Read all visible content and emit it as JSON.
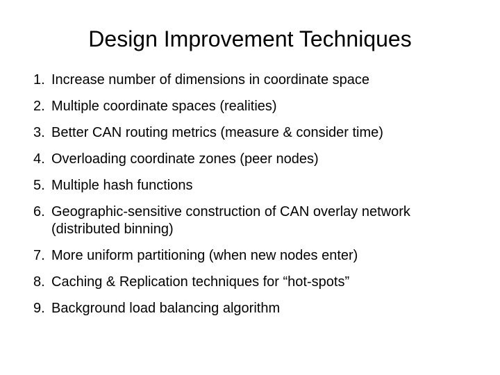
{
  "title": "Design Improvement Techniques",
  "items": [
    {
      "num": "1.",
      "text": "Increase number of dimensions in coordinate space"
    },
    {
      "num": "2.",
      "text": "Multiple coordinate spaces (realities)"
    },
    {
      "num": "3.",
      "text": "Better CAN routing metrics (measure & consider time)"
    },
    {
      "num": "4.",
      "text": "Overloading coordinate zones (peer nodes)"
    },
    {
      "num": "5.",
      "text": "Multiple hash functions"
    },
    {
      "num": "6.",
      "text": "Geographic-sensitive construction of CAN overlay network (distributed binning)"
    },
    {
      "num": "7.",
      "text": "More uniform partitioning (when new nodes enter)"
    },
    {
      "num": "8.",
      "text": "Caching & Replication techniques for “hot-spots”"
    },
    {
      "num": "9.",
      "text": "Background load balancing algorithm"
    }
  ],
  "style": {
    "background_color": "#ffffff",
    "text_color": "#000000",
    "title_fontsize": 32,
    "item_fontsize": 20,
    "font_family": "Arial"
  }
}
